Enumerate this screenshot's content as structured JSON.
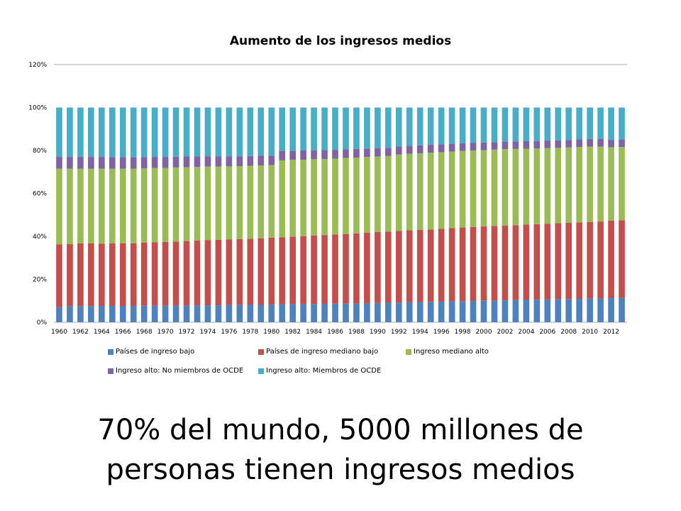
{
  "slide": {
    "line1": "70% del mundo, 5000 millones de",
    "line2": "personas tienen ingresos medios"
  },
  "chart_data": {
    "type": "bar",
    "stacked": true,
    "title": "Aumento de los ingresos medios",
    "xlabel": "",
    "ylabel": "",
    "ylim": [
      0,
      1.2
    ],
    "yticks": [
      "0%",
      "20%",
      "40%",
      "60%",
      "80%",
      "100%",
      "120%"
    ],
    "grid": false,
    "legend_position": "bottom",
    "categories": [
      "1960",
      "1961",
      "1962",
      "1963",
      "1964",
      "1965",
      "1966",
      "1967",
      "1968",
      "1969",
      "1970",
      "1971",
      "1972",
      "1973",
      "1974",
      "1975",
      "1976",
      "1977",
      "1978",
      "1979",
      "1980",
      "1981",
      "1982",
      "1983",
      "1984",
      "1985",
      "1986",
      "1987",
      "1988",
      "1989",
      "1990",
      "1991",
      "1992",
      "1993",
      "1994",
      "1995",
      "1996",
      "1997",
      "1998",
      "1999",
      "2000",
      "2001",
      "2002",
      "2003",
      "2004",
      "2005",
      "2006",
      "2007",
      "2008",
      "2009",
      "2010",
      "2011",
      "2012",
      "2013"
    ],
    "tick_labels": [
      "1960",
      "1962",
      "1964",
      "1966",
      "1968",
      "1970",
      "1972",
      "1974",
      "1976",
      "1978",
      "1980",
      "1982",
      "1984",
      "1986",
      "1988",
      "1990",
      "1992",
      "1994",
      "1996",
      "1998",
      "2000",
      "2002",
      "2004",
      "2006",
      "2008",
      "2010",
      "2012"
    ],
    "series": [
      {
        "name": "Países de ingreso bajo",
        "color": "#4F81BD",
        "values": [
          0.07,
          0.075,
          0.075,
          0.075,
          0.076,
          0.076,
          0.076,
          0.076,
          0.077,
          0.077,
          0.077,
          0.078,
          0.078,
          0.078,
          0.079,
          0.079,
          0.08,
          0.08,
          0.081,
          0.081,
          0.082,
          0.083,
          0.084,
          0.084,
          0.085,
          0.086,
          0.087,
          0.087,
          0.088,
          0.089,
          0.09,
          0.091,
          0.092,
          0.093,
          0.094,
          0.095,
          0.096,
          0.097,
          0.098,
          0.099,
          0.1,
          0.101,
          0.102,
          0.103,
          0.104,
          0.105,
          0.106,
          0.107,
          0.108,
          0.109,
          0.11,
          0.111,
          0.112,
          0.113
        ]
      },
      {
        "name": "Países de ingreso mediano bajo",
        "color": "#C0504D",
        "values": [
          0.293,
          0.289,
          0.292,
          0.292,
          0.29,
          0.291,
          0.292,
          0.292,
          0.294,
          0.295,
          0.297,
          0.298,
          0.3,
          0.302,
          0.304,
          0.305,
          0.306,
          0.307,
          0.308,
          0.31,
          0.312,
          0.313,
          0.315,
          0.317,
          0.319,
          0.32,
          0.322,
          0.324,
          0.326,
          0.328,
          0.33,
          0.331,
          0.333,
          0.335,
          0.336,
          0.337,
          0.339,
          0.341,
          0.343,
          0.345,
          0.346,
          0.347,
          0.348,
          0.349,
          0.351,
          0.352,
          0.353,
          0.354,
          0.355,
          0.356,
          0.357,
          0.358,
          0.361,
          0.362
        ]
      },
      {
        "name": "Ingreso mediano alto",
        "color": "#9BBB59",
        "values": [
          0.352,
          0.351,
          0.348,
          0.348,
          0.349,
          0.348,
          0.347,
          0.347,
          0.346,
          0.346,
          0.345,
          0.345,
          0.344,
          0.343,
          0.342,
          0.341,
          0.34,
          0.34,
          0.34,
          0.339,
          0.338,
          0.358,
          0.357,
          0.356,
          0.355,
          0.354,
          0.353,
          0.354,
          0.353,
          0.353,
          0.352,
          0.352,
          0.356,
          0.357,
          0.357,
          0.358,
          0.357,
          0.357,
          0.357,
          0.356,
          0.355,
          0.356,
          0.356,
          0.355,
          0.353,
          0.352,
          0.352,
          0.351,
          0.351,
          0.351,
          0.351,
          0.349,
          0.342,
          0.341
        ]
      },
      {
        "name": "Ingreso alto: No miembros de OCDE",
        "color": "#8064A2",
        "values": [
          0.055,
          0.055,
          0.055,
          0.055,
          0.055,
          0.054,
          0.054,
          0.054,
          0.052,
          0.052,
          0.051,
          0.05,
          0.05,
          0.049,
          0.048,
          0.047,
          0.046,
          0.046,
          0.045,
          0.045,
          0.044,
          0.044,
          0.043,
          0.043,
          0.042,
          0.042,
          0.041,
          0.041,
          0.04,
          0.039,
          0.039,
          0.038,
          0.038,
          0.037,
          0.037,
          0.037,
          0.036,
          0.036,
          0.036,
          0.036,
          0.036,
          0.035,
          0.035,
          0.035,
          0.035,
          0.035,
          0.035,
          0.035,
          0.035,
          0.035,
          0.035,
          0.035,
          0.035,
          0.035
        ]
      },
      {
        "name": "Ingreso alto: Miembros de OCDE",
        "color": "#4BACC6",
        "values": [
          0.23,
          0.23,
          0.23,
          0.23,
          0.23,
          0.231,
          0.231,
          0.231,
          0.231,
          0.23,
          0.23,
          0.229,
          0.228,
          0.228,
          0.227,
          0.228,
          0.228,
          0.227,
          0.226,
          0.225,
          0.224,
          0.202,
          0.201,
          0.2,
          0.199,
          0.198,
          0.197,
          0.194,
          0.193,
          0.191,
          0.189,
          0.188,
          0.181,
          0.178,
          0.176,
          0.173,
          0.172,
          0.169,
          0.166,
          0.164,
          0.163,
          0.161,
          0.159,
          0.158,
          0.157,
          0.156,
          0.154,
          0.153,
          0.151,
          0.149,
          0.147,
          0.147,
          0.15,
          0.149
        ]
      }
    ]
  }
}
